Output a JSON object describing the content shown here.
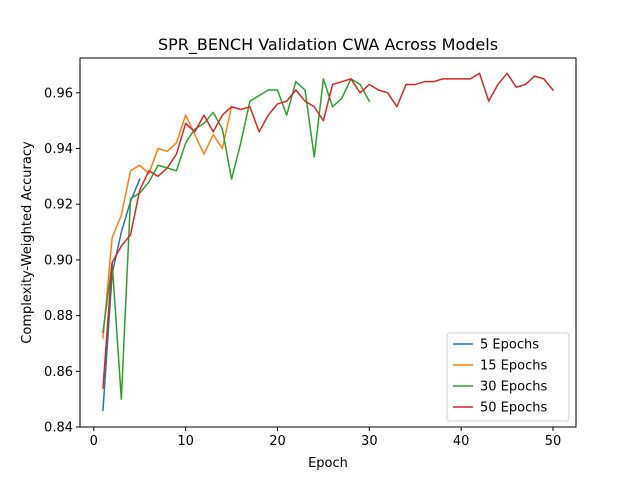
{
  "chart_data": {
    "type": "line",
    "title": "SPR_BENCH Validation CWA Across Models",
    "xlabel": "Epoch",
    "ylabel": "Complexity-Weighted Accuracy",
    "xlim": [
      -1.5,
      52.5
    ],
    "ylim": [
      0.84,
      0.9725
    ],
    "xticks": [
      0,
      10,
      20,
      30,
      40,
      50
    ],
    "yticks": [
      0.84,
      0.86,
      0.88,
      0.9,
      0.92,
      0.94,
      0.96
    ],
    "ytick_labels": [
      "0.84",
      "0.86",
      "0.88",
      "0.90",
      "0.92",
      "0.94",
      "0.96"
    ],
    "grid": false,
    "legend_position": "lower-right",
    "series": [
      {
        "name": "5 Epochs",
        "color": "#1f77b4",
        "x": [
          1,
          2,
          3,
          4,
          5
        ],
        "y": [
          0.846,
          0.895,
          0.91,
          0.921,
          0.929
        ]
      },
      {
        "name": "15 Epochs",
        "color": "#ff7f0e",
        "x": [
          1,
          2,
          3,
          4,
          5,
          6,
          7,
          8,
          9,
          10,
          11,
          12,
          13,
          14,
          15
        ],
        "y": [
          0.872,
          0.908,
          0.916,
          0.932,
          0.934,
          0.931,
          0.94,
          0.939,
          0.942,
          0.952,
          0.945,
          0.938,
          0.945,
          0.94,
          0.955
        ]
      },
      {
        "name": "30 Epochs",
        "color": "#2ca02c",
        "x": [
          1,
          2,
          3,
          4,
          5,
          6,
          7,
          8,
          9,
          10,
          11,
          12,
          13,
          14,
          15,
          16,
          17,
          18,
          19,
          20,
          21,
          22,
          23,
          24,
          25,
          26,
          27,
          28,
          29,
          30
        ],
        "y": [
          0.874,
          0.899,
          0.85,
          0.922,
          0.924,
          0.928,
          0.934,
          0.933,
          0.932,
          0.942,
          0.947,
          0.949,
          0.953,
          0.947,
          0.929,
          0.942,
          0.957,
          0.959,
          0.961,
          0.961,
          0.952,
          0.964,
          0.961,
          0.937,
          0.965,
          0.955,
          0.958,
          0.965,
          0.963,
          0.957
        ]
      },
      {
        "name": "50 Epochs",
        "color": "#d62728",
        "x": [
          1,
          2,
          3,
          4,
          5,
          6,
          7,
          8,
          9,
          10,
          11,
          12,
          13,
          14,
          15,
          16,
          17,
          18,
          19,
          20,
          21,
          22,
          23,
          24,
          25,
          26,
          27,
          28,
          29,
          30,
          31,
          32,
          33,
          34,
          35,
          36,
          37,
          38,
          39,
          40,
          41,
          42,
          43,
          44,
          45,
          46,
          47,
          48,
          49,
          50
        ],
        "y": [
          0.854,
          0.899,
          0.905,
          0.909,
          0.925,
          0.932,
          0.93,
          0.933,
          0.938,
          0.949,
          0.946,
          0.952,
          0.946,
          0.952,
          0.955,
          0.954,
          0.955,
          0.946,
          0.952,
          0.956,
          0.957,
          0.961,
          0.957,
          0.955,
          0.95,
          0.963,
          0.964,
          0.965,
          0.96,
          0.963,
          0.961,
          0.96,
          0.955,
          0.963,
          0.963,
          0.964,
          0.964,
          0.965,
          0.965,
          0.965,
          0.965,
          0.967,
          0.957,
          0.963,
          0.967,
          0.962,
          0.963,
          0.966,
          0.965,
          0.961
        ]
      }
    ]
  }
}
